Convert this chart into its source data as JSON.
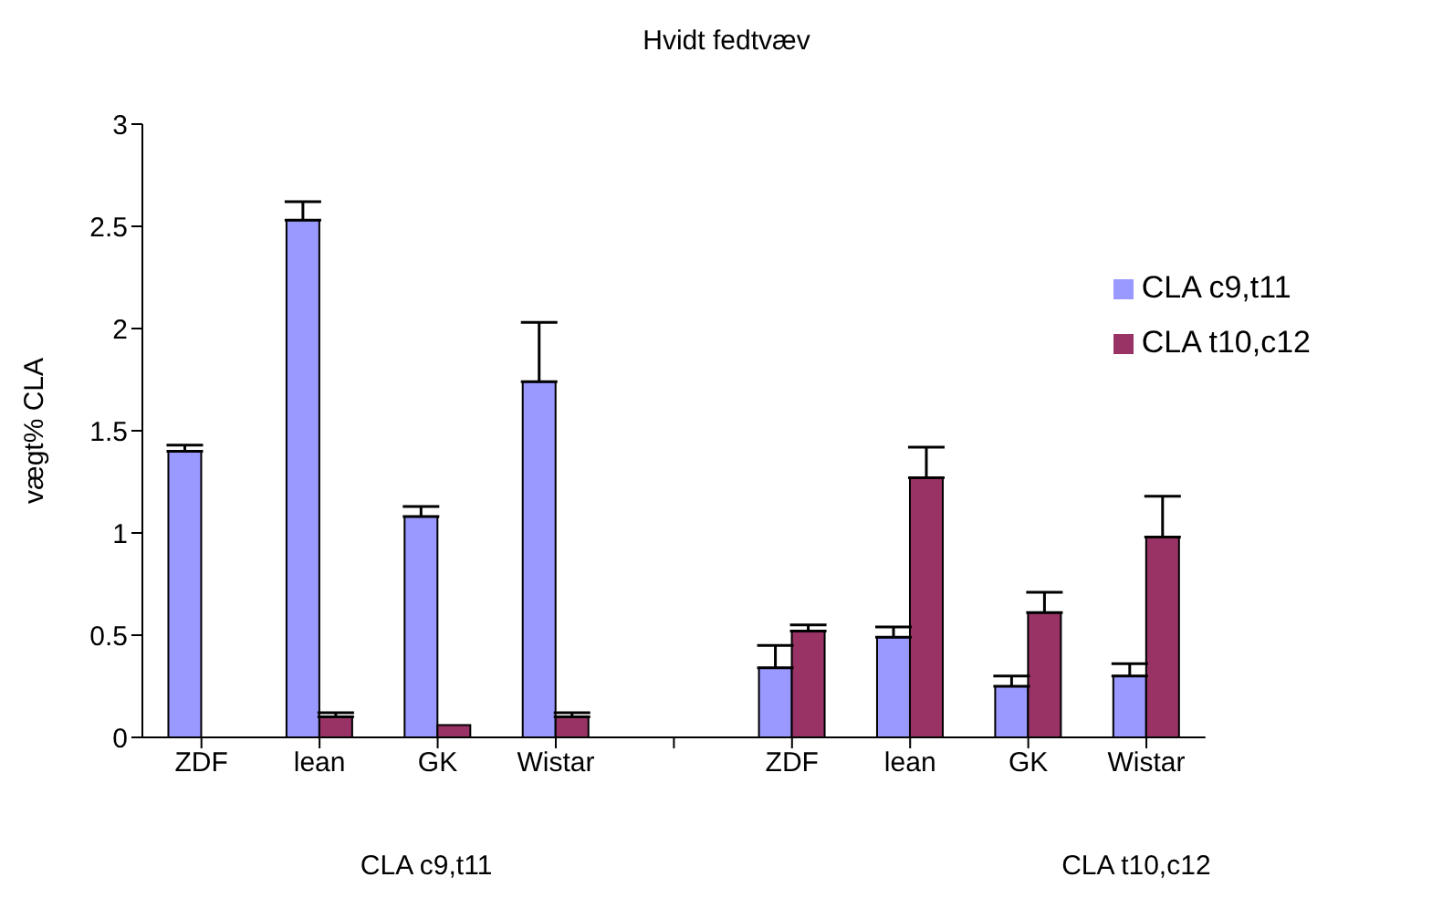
{
  "chart_data": {
    "type": "bar",
    "title": "Hvidt fedtvæv",
    "ylabel": "vægt% CLA",
    "categories": [
      "ZDF",
      "lean",
      "GK",
      "Wistar",
      null,
      "ZDF",
      "lean",
      "GK",
      "Wistar"
    ],
    "series": [
      {
        "name": "CLA c9,t11",
        "color": "#9999ff",
        "values": [
          1.4,
          2.53,
          1.08,
          1.74,
          null,
          0.34,
          0.49,
          0.25,
          0.3
        ],
        "errors": [
          [
            1.4,
            1.43
          ],
          [
            2.53,
            2.62
          ],
          [
            1.08,
            1.13
          ],
          [
            1.74,
            2.03
          ],
          null,
          [
            0.34,
            0.45
          ],
          [
            0.49,
            0.54
          ],
          [
            0.25,
            0.3
          ],
          [
            0.3,
            0.36
          ]
        ]
      },
      {
        "name": "CLA t10,c12",
        "color": "#993366",
        "values": [
          0,
          0.1,
          0.06,
          0.1,
          null,
          0.52,
          1.27,
          0.61,
          0.98
        ],
        "errors": [
          null,
          [
            0.1,
            0.12
          ],
          null,
          [
            0.1,
            0.12
          ],
          null,
          [
            0.52,
            0.55
          ],
          [
            1.27,
            1.42
          ],
          [
            0.61,
            0.71
          ],
          [
            0.98,
            1.18
          ]
        ]
      }
    ],
    "annotations": [
      "CLA c9,t11",
      "CLA t10,c12"
    ],
    "ylim": [
      0,
      3
    ],
    "yticks": [
      0,
      0.5,
      1,
      1.5,
      2,
      2.5,
      3
    ],
    "grid": false,
    "legend": "top right"
  }
}
